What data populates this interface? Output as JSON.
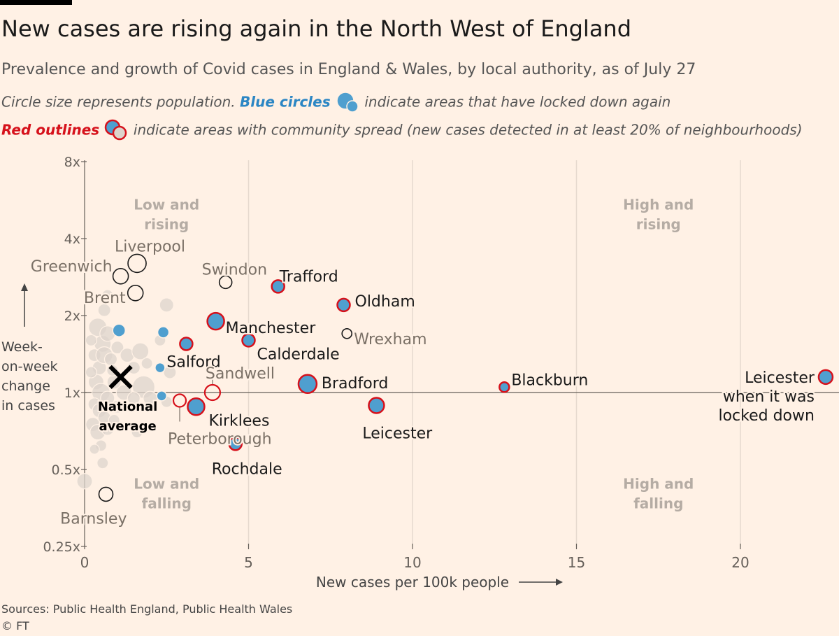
{
  "header": {
    "title": "New cases are rising again in the North West of England",
    "subtitle": "Prevalence and growth of Covid cases in England & Wales, by local authority, as of July 27",
    "note1_pre": "Circle size represents population. ",
    "note1_blue": "Blue circles",
    "note1_post": " indicate areas that have locked down again",
    "note2_red": "Red outlines",
    "note2_post": " indicate areas with community spread (new cases detected in at least 20% of neighbourhoods)"
  },
  "footer": {
    "sources": "Sources: Public Health England, Public Health Wales",
    "copyright": "© FT"
  },
  "colors": {
    "background": "#fff1e5",
    "locked_down_fill": "#4f9fcf",
    "community_spread_outline": "#d6111b",
    "other_fill": "#ddd4cc",
    "highlight_outline": "#1a1a1a"
  },
  "chart_data": {
    "type": "scatter",
    "xlabel": "New cases per 100k people",
    "ylabel": [
      "Week-",
      "on-week",
      "change",
      "in cases"
    ],
    "xlim": [
      0,
      22.7
    ],
    "ylim": [
      0.25,
      8
    ],
    "y_scale": "log2",
    "x_ticks": [
      0,
      5,
      10,
      15,
      20
    ],
    "y_ticks": [
      {
        "value": 0.25,
        "label": "0.25x"
      },
      {
        "value": 0.5,
        "label": "0.5x"
      },
      {
        "value": 1,
        "label": "1x"
      },
      {
        "value": 2,
        "label": "2x"
      },
      {
        "value": 4,
        "label": "4x"
      },
      {
        "value": 8,
        "label": "8x"
      }
    ],
    "grid": true,
    "quadrants": [
      {
        "lines": [
          "Low and",
          "rising"
        ],
        "x": 2.5,
        "y": 5.2
      },
      {
        "lines": [
          "High and",
          "rising"
        ],
        "x": 17.5,
        "y": 5.2
      },
      {
        "lines": [
          "Low and",
          "falling"
        ],
        "x": 2.5,
        "y": 0.42
      },
      {
        "lines": [
          "High and",
          "falling"
        ],
        "x": 17.5,
        "y": 0.42
      }
    ],
    "national_average": {
      "x": 1.1,
      "y": 1.15,
      "lines": [
        "National",
        "average"
      ]
    },
    "highlighted": [
      {
        "name": "Trafford",
        "x": 5.9,
        "y": 2.6,
        "r": 9,
        "locked": true,
        "spread": true,
        "label_dx": 2,
        "label_dy": -14,
        "anchor": "start",
        "color": "#1a1a1a"
      },
      {
        "name": "Oldham",
        "x": 7.9,
        "y": 2.2,
        "r": 9,
        "locked": true,
        "spread": true,
        "label_dx": 16,
        "label_dy": -5,
        "anchor": "start",
        "color": "#1a1a1a"
      },
      {
        "name": "Manchester",
        "x": 4.0,
        "y": 1.9,
        "r": 12,
        "locked": true,
        "spread": true,
        "label_dx": 14,
        "label_dy": 10,
        "anchor": "start",
        "color": "#1a1a1a"
      },
      {
        "name": "Calderdale",
        "x": 5.0,
        "y": 1.6,
        "r": 9,
        "locked": true,
        "spread": true,
        "label_dx": 12,
        "label_dy": 20,
        "anchor": "start",
        "color": "#1a1a1a"
      },
      {
        "name": "Salford",
        "x": 3.1,
        "y": 1.55,
        "r": 9,
        "locked": true,
        "spread": true,
        "label_dx": -28,
        "label_dy": 26,
        "anchor": "start",
        "color": "#1a1a1a"
      },
      {
        "name": "Bradford",
        "x": 6.8,
        "y": 1.08,
        "r": 13,
        "locked": true,
        "spread": true,
        "label_dx": 20,
        "label_dy": -1,
        "anchor": "start",
        "color": "#1a1a1a"
      },
      {
        "name": "Blackburn",
        "x": 12.8,
        "y": 1.05,
        "r": 7,
        "locked": true,
        "spread": true,
        "label_dx": 10,
        "label_dy": -10,
        "anchor": "start",
        "color": "#1a1a1a"
      },
      {
        "name": "Kirklees",
        "x": 3.4,
        "y": 0.88,
        "r": 12,
        "locked": true,
        "spread": true,
        "label_dx": 18,
        "label_dy": 20,
        "anchor": "start",
        "color": "#1a1a1a"
      },
      {
        "name": "Leicester",
        "x": 8.9,
        "y": 0.89,
        "r": 11,
        "locked": true,
        "spread": true,
        "label_dx": -20,
        "label_dy": 40,
        "anchor": "start",
        "color": "#1a1a1a"
      },
      {
        "name": "Rochdale",
        "x": 4.6,
        "y": 0.63,
        "r": 9,
        "locked": true,
        "spread": true,
        "label_dx": -34,
        "label_dy": 36,
        "anchor": "start",
        "color": "#1a1a1a"
      },
      {
        "name": "Sandwell",
        "x": 3.9,
        "y": 1.0,
        "r": 11,
        "locked": false,
        "spread": true,
        "label_dx": -10,
        "label_dy": -27,
        "anchor": "start",
        "color": "#7a7066"
      },
      {
        "name": "Peterborough",
        "x": 2.9,
        "y": 0.93,
        "r": 9,
        "locked": false,
        "spread": true,
        "label_dx": -17,
        "label_dy": 55,
        "anchor": "start",
        "color": "#7a7066"
      },
      {
        "name": "Liverpool",
        "x": 1.6,
        "y": 3.2,
        "r": 13,
        "locked": false,
        "spread": false,
        "label_dx": -32,
        "label_dy": -24,
        "anchor": "start",
        "color": "#7a7066"
      },
      {
        "name": "Greenwich",
        "x": 1.1,
        "y": 2.85,
        "r": 11,
        "locked": false,
        "spread": false,
        "label_dx": -12,
        "label_dy": -14,
        "anchor": "end",
        "color": "#7a7066"
      },
      {
        "name": "Brent",
        "x": 1.55,
        "y": 2.45,
        "r": 11,
        "locked": false,
        "spread": false,
        "label_dx": -14,
        "label_dy": 7,
        "anchor": "end",
        "color": "#7a7066"
      },
      {
        "name": "Swindon",
        "x": 4.3,
        "y": 2.7,
        "r": 9,
        "locked": false,
        "spread": false,
        "label_dx": -34,
        "label_dy": -18,
        "anchor": "start",
        "color": "#7a7066"
      },
      {
        "name": "Wrexham",
        "x": 8.0,
        "y": 1.7,
        "r": 7,
        "locked": false,
        "spread": false,
        "label_dx": 10,
        "label_dy": 8,
        "anchor": "start",
        "color": "#7a7066"
      },
      {
        "name": "Barnsley",
        "x": 0.65,
        "y": 0.4,
        "r": 10,
        "locked": false,
        "spread": false,
        "label_dx": 30,
        "label_dy": 35,
        "anchor": "end",
        "color": "#7a7066"
      }
    ],
    "leicester_lockdown": {
      "name_lines": [
        "Leicester",
        "when it was",
        "locked down"
      ],
      "x": 22.6,
      "y": 1.15
    },
    "background_points": [
      {
        "x": 0.4,
        "y": 1.8,
        "r": 13
      },
      {
        "x": 0.55,
        "y": 1.55,
        "r": 12
      },
      {
        "x": 0.7,
        "y": 1.7,
        "r": 11
      },
      {
        "x": 0.3,
        "y": 1.4,
        "r": 9
      },
      {
        "x": 0.45,
        "y": 1.25,
        "r": 10
      },
      {
        "x": 0.6,
        "y": 1.4,
        "r": 12
      },
      {
        "x": 0.8,
        "y": 1.35,
        "r": 9
      },
      {
        "x": 0.35,
        "y": 1.1,
        "r": 11
      },
      {
        "x": 0.5,
        "y": 1.0,
        "r": 13
      },
      {
        "x": 0.7,
        "y": 0.95,
        "r": 10
      },
      {
        "x": 0.3,
        "y": 0.9,
        "r": 9
      },
      {
        "x": 0.45,
        "y": 0.85,
        "r": 10
      },
      {
        "x": 0.6,
        "y": 0.8,
        "r": 9
      },
      {
        "x": 0.25,
        "y": 0.75,
        "r": 10
      },
      {
        "x": 0.4,
        "y": 0.7,
        "r": 11
      },
      {
        "x": 0.5,
        "y": 0.62,
        "r": 8
      },
      {
        "x": 0.7,
        "y": 0.72,
        "r": 9
      },
      {
        "x": 0.9,
        "y": 0.78,
        "r": 8
      },
      {
        "x": 1.0,
        "y": 1.5,
        "r": 9
      },
      {
        "x": 1.3,
        "y": 1.4,
        "r": 10
      },
      {
        "x": 1.7,
        "y": 1.45,
        "r": 12
      },
      {
        "x": 1.5,
        "y": 1.25,
        "r": 9
      },
      {
        "x": 1.9,
        "y": 1.3,
        "r": 8
      },
      {
        "x": 1.2,
        "y": 1.0,
        "r": 11
      },
      {
        "x": 1.8,
        "y": 1.05,
        "r": 16
      },
      {
        "x": 2.0,
        "y": 0.95,
        "r": 10
      },
      {
        "x": 0.9,
        "y": 1.1,
        "r": 10
      },
      {
        "x": 1.5,
        "y": 0.95,
        "r": 9
      },
      {
        "x": 0.2,
        "y": 1.2,
        "r": 8
      },
      {
        "x": 0.2,
        "y": 1.6,
        "r": 8
      },
      {
        "x": 0.6,
        "y": 2.1,
        "r": 9
      },
      {
        "x": 0.7,
        "y": 2.4,
        "r": 8
      },
      {
        "x": 2.5,
        "y": 2.2,
        "r": 10
      },
      {
        "x": 2.6,
        "y": 1.2,
        "r": 9
      },
      {
        "x": 2.3,
        "y": 1.6,
        "r": 8
      },
      {
        "x": 1.6,
        "y": 0.7,
        "r": 8
      },
      {
        "x": 0.55,
        "y": 0.53,
        "r": 8
      },
      {
        "x": 0.3,
        "y": 0.6,
        "r": 7
      },
      {
        "x": 0.0,
        "y": 0.45,
        "r": 11
      },
      {
        "x": 2.5,
        "y": 0.92,
        "r": 8
      },
      {
        "x": 1.0,
        "y": 0.88,
        "r": 9
      },
      {
        "x": 0.85,
        "y": 1.22,
        "r": 8
      }
    ],
    "background_locked": [
      {
        "x": 1.05,
        "y": 1.75,
        "r": 9
      },
      {
        "x": 2.4,
        "y": 1.72,
        "r": 8
      },
      {
        "x": 2.3,
        "y": 1.25,
        "r": 7
      },
      {
        "x": 2.35,
        "y": 0.97,
        "r": 7
      }
    ]
  }
}
